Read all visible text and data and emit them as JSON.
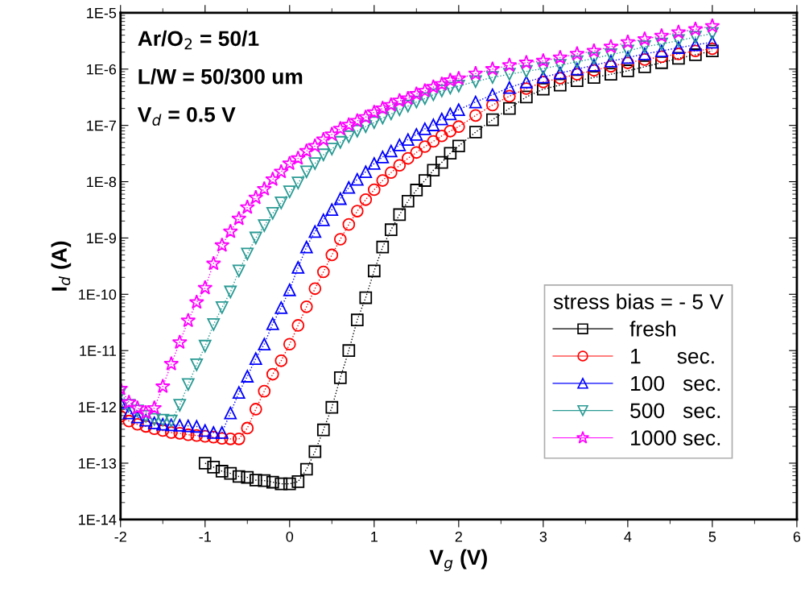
{
  "chart_data": {
    "type": "line",
    "xlabel": "V$_{g}$ (V)",
    "ylabel": "I$_{d}$ (A)",
    "legend_title": "stress bias = - 5 V",
    "annotations": [
      "Ar/O$_{2}$ = 50/1",
      "L/W = 50/300 um",
      "V$_{d}$ = 0.5 V"
    ],
    "log": "y",
    "legend": "bottom right",
    "line_style": "dotted",
    "xlim": [
      -2,
      6
    ],
    "xticks": [
      {
        "value": -2,
        "label": "-2"
      },
      {
        "value": -1,
        "label": "-1"
      },
      0,
      1,
      2,
      3,
      4,
      5,
      6
    ],
    "ylim": [
      1e-14,
      1e-05
    ],
    "yticks": [
      {
        "value": 1e-14,
        "label": "1E-14"
      },
      {
        "value": 1e-13,
        "label": "1E-13"
      },
      {
        "value": 1e-12,
        "label": "1E-12"
      },
      {
        "value": 1e-11,
        "label": "1E-11"
      },
      {
        "value": 1e-10,
        "label": "1E-10"
      },
      {
        "value": 1e-09,
        "label": "1E-9"
      },
      {
        "value": 1e-08,
        "label": "1E-8"
      },
      {
        "value": 1e-07,
        "label": "1E-7"
      },
      {
        "value": 1e-06,
        "label": "1E-6"
      },
      {
        "value": 1e-05,
        "label": "1E-5"
      }
    ],
    "series": [
      {
        "name": "fresh",
        "color": "#000000",
        "marker": "square",
        "x": [
          -1.0,
          -0.9,
          -0.8,
          -0.7,
          -0.6,
          -0.5,
          -0.4,
          -0.3,
          -0.2,
          -0.1,
          0.0,
          0.1,
          0.2,
          0.3,
          0.4,
          0.5,
          0.6,
          0.7,
          0.8,
          0.9,
          1.0,
          1.1,
          1.2,
          1.3,
          1.4,
          1.5,
          1.6,
          1.7,
          1.8,
          1.9,
          2.0,
          2.2,
          2.4,
          2.6,
          2.8,
          3.0,
          3.2,
          3.4,
          3.6,
          3.8,
          4.0,
          4.2,
          4.4,
          4.6,
          4.8,
          5.0
        ],
        "values": [
          1e-13,
          8.5e-14,
          7.2e-14,
          6.6e-14,
          5.8e-14,
          5.6e-14,
          5e-14,
          4.9e-14,
          4.6e-14,
          4.3e-14,
          4.3e-14,
          4.7e-14,
          7.8e-14,
          1.6e-13,
          3.9e-13,
          9.8e-13,
          3.3e-12,
          1e-11,
          3.5e-11,
          8.7e-11,
          2.6e-10,
          6.9e-10,
          1.4e-09,
          2.6e-09,
          4.5e-09,
          7.1e-09,
          1.05e-08,
          1.6e-08,
          2.2e-08,
          3.2e-08,
          4.3e-08,
          7.6e-08,
          1.26e-07,
          2e-07,
          3.2e-07,
          4.4e-07,
          5.2e-07,
          6.2e-07,
          7.1e-07,
          8.1e-07,
          9.3e-07,
          1.1e-06,
          1.3e-06,
          1.55e-06,
          1.8e-06,
          2.1e-06
        ]
      },
      {
        "name": "1      sec.",
        "color": "#ff0000",
        "marker": "circle",
        "x": [
          -2.0,
          -1.9,
          -1.8,
          -1.7,
          -1.6,
          -1.5,
          -1.4,
          -1.3,
          -1.2,
          -1.1,
          -1.0,
          -0.9,
          -0.8,
          -0.7,
          -0.6,
          -0.5,
          -0.4,
          -0.3,
          -0.2,
          -0.1,
          0.0,
          0.1,
          0.2,
          0.3,
          0.4,
          0.5,
          0.6,
          0.7,
          0.8,
          0.9,
          1.0,
          1.1,
          1.2,
          1.3,
          1.4,
          1.5,
          1.6,
          1.7,
          1.8,
          1.9,
          2.0,
          2.2,
          2.4,
          2.6,
          2.8,
          3.0,
          3.2,
          3.4,
          3.6,
          3.8,
          4.0,
          4.2,
          4.4,
          4.6,
          4.8,
          5.0
        ],
        "values": [
          6.8e-13,
          5.6e-13,
          4.9e-13,
          4.5e-13,
          4.1e-13,
          3.8e-13,
          3.5e-13,
          3.4e-13,
          3.2e-13,
          3.1e-13,
          3e-13,
          2.9e-13,
          2.75e-13,
          2.7e-13,
          2.7e-13,
          4.2e-13,
          9.1e-13,
          1.9e-12,
          3.8e-12,
          6.6e-12,
          1.3e-11,
          2.8e-11,
          6e-11,
          1.26e-10,
          2.5e-10,
          5e-10,
          9.5e-10,
          1.74e-09,
          3e-09,
          4.8e-09,
          7.2e-09,
          1.05e-08,
          1.45e-08,
          1.95e-08,
          2.6e-08,
          3.3e-08,
          4.2e-08,
          5.2e-08,
          6.5e-08,
          7.9e-08,
          9.5e-08,
          1.5e-07,
          2.3e-07,
          3.3e-07,
          4.5e-07,
          5.9e-07,
          6.9e-07,
          8.1e-07,
          9.5e-07,
          1.12e-06,
          1.29e-06,
          1.48e-06,
          1.66e-06,
          1.86e-06,
          2.1e-06,
          2.3e-06
        ]
      },
      {
        "name": "100   sec.",
        "color": "#0000ff",
        "marker": "triangle",
        "x": [
          -2.0,
          -1.9,
          -1.8,
          -1.7,
          -1.6,
          -1.5,
          -1.4,
          -1.3,
          -1.2,
          -1.1,
          -1.0,
          -0.9,
          -0.8,
          -0.7,
          -0.6,
          -0.5,
          -0.4,
          -0.3,
          -0.2,
          -0.1,
          0.0,
          0.1,
          0.2,
          0.3,
          0.4,
          0.5,
          0.6,
          0.7,
          0.8,
          0.9,
          1.0,
          1.1,
          1.2,
          1.3,
          1.4,
          1.5,
          1.6,
          1.7,
          1.8,
          1.9,
          2.0,
          2.2,
          2.4,
          2.6,
          2.8,
          3.0,
          3.2,
          3.4,
          3.6,
          3.8,
          4.0,
          4.2,
          4.4,
          4.6,
          4.8,
          5.0
        ],
        "values": [
          1.2e-12,
          7.8e-13,
          6.6e-13,
          5.8e-13,
          5.2e-13,
          4.9e-13,
          4.8e-13,
          4.7e-13,
          4.6e-13,
          4.5e-13,
          3.8e-13,
          3.5e-13,
          3.5e-13,
          7.8e-13,
          1.8e-12,
          3.5e-12,
          7.2e-12,
          1.3e-11,
          3e-11,
          5.8e-11,
          1.2e-10,
          3e-10,
          6.9e-10,
          1.3e-09,
          2.1e-09,
          3.2e-09,
          5e-09,
          7.9e-09,
          1.1e-08,
          1.5e-08,
          2.1e-08,
          2.75e-08,
          3.5e-08,
          4.5e-08,
          5.6e-08,
          6.9e-08,
          8.7e-08,
          1.02e-07,
          1.3e-07,
          1.6e-07,
          1.9e-07,
          2.6e-07,
          3.5e-07,
          4.7e-07,
          5.9e-07,
          7.2e-07,
          8.5e-07,
          1e-06,
          1.17e-06,
          1.38e-06,
          1.6e-06,
          1.86e-06,
          2.1e-06,
          2.4e-06,
          2.7e-06,
          3e-06
        ]
      },
      {
        "name": "500   sec.",
        "color": "#2a9a94",
        "marker": "triangle_down",
        "x": [
          -2.0,
          -1.9,
          -1.8,
          -1.7,
          -1.6,
          -1.5,
          -1.4,
          -1.3,
          -1.2,
          -1.1,
          -1.0,
          -0.9,
          -0.8,
          -0.7,
          -0.6,
          -0.5,
          -0.4,
          -0.3,
          -0.2,
          -0.1,
          0.0,
          0.1,
          0.2,
          0.3,
          0.4,
          0.5,
          0.6,
          0.7,
          0.8,
          0.9,
          1.0,
          1.1,
          1.2,
          1.3,
          1.4,
          1.5,
          1.6,
          1.7,
          1.8,
          1.9,
          2.0,
          2.2,
          2.4,
          2.6,
          2.8,
          3.0,
          3.2,
          3.4,
          3.6,
          3.8,
          4.0,
          4.2,
          4.4,
          4.6,
          4.8,
          5.0
        ],
        "values": [
          1.8e-12,
          1.07e-12,
          8.5e-13,
          6.8e-13,
          6e-13,
          5.8e-13,
          5.6e-13,
          1.07e-12,
          2.5e-12,
          5.6e-12,
          1.2e-11,
          2.9e-11,
          5.8e-11,
          1.1e-10,
          2.6e-10,
          5.2e-10,
          1e-09,
          1.66e-09,
          2.75e-09,
          4.2e-09,
          6.6e-09,
          9.5e-09,
          1.5e-08,
          2.1e-08,
          3e-08,
          3.8e-08,
          5e-08,
          6.3e-08,
          7.9e-08,
          9.5e-08,
          1.12e-07,
          1.35e-07,
          1.6e-07,
          1.9e-07,
          2.2e-07,
          2.6e-07,
          3e-07,
          3.5e-07,
          4.1e-07,
          4.6e-07,
          5e-07,
          6e-07,
          7.1e-07,
          8.1e-07,
          9.1e-07,
          1.02e-06,
          1.17e-06,
          1.35e-06,
          1.55e-06,
          1.8e-06,
          2.1e-06,
          2.5e-06,
          2.8e-06,
          3.2e-06,
          3.7e-06,
          4.3e-06
        ]
      },
      {
        "name": "1000 sec.",
        "color": "#ff00ff",
        "marker": "star",
        "x": [
          -2.0,
          -1.9,
          -1.8,
          -1.7,
          -1.6,
          -1.5,
          -1.4,
          -1.3,
          -1.2,
          -1.1,
          -1.0,
          -0.9,
          -0.8,
          -0.7,
          -0.6,
          -0.5,
          -0.4,
          -0.3,
          -0.2,
          -0.1,
          0.0,
          0.1,
          0.2,
          0.3,
          0.4,
          0.5,
          0.6,
          0.7,
          0.8,
          0.9,
          1.0,
          1.1,
          1.2,
          1.3,
          1.4,
          1.5,
          1.6,
          1.7,
          1.8,
          1.9,
          2.0,
          2.2,
          2.4,
          2.6,
          2.8,
          3.0,
          3.2,
          3.4,
          3.6,
          3.8,
          4.0,
          4.2,
          4.4,
          4.6,
          4.8,
          5.0
        ],
        "values": [
          2.1e-12,
          1.2e-12,
          9.5e-13,
          7.9e-13,
          9.5e-13,
          2.3e-12,
          5.8e-12,
          1.4e-11,
          3.4e-11,
          7.2e-11,
          1.3e-10,
          3.5e-10,
          7.4e-10,
          1.3e-09,
          2.2e-09,
          3.5e-09,
          5.2e-09,
          7.4e-09,
          1.1e-08,
          1.5e-08,
          2.1e-08,
          2.6e-08,
          3.5e-08,
          4.3e-08,
          5.6e-08,
          6.9e-08,
          8.7e-08,
          1.02e-07,
          1.2e-07,
          1.4e-07,
          1.7e-07,
          2e-07,
          2.3e-07,
          2.75e-07,
          3e-07,
          3.6e-07,
          4.1e-07,
          4.8e-07,
          5.4e-07,
          6.3e-07,
          6.8e-07,
          8.3e-07,
          1e-06,
          1.17e-06,
          1.3e-06,
          1.4e-06,
          1.6e-06,
          1.86e-06,
          2.1e-06,
          2.5e-06,
          3e-06,
          3.4e-06,
          3.9e-06,
          4.5e-06,
          5.1e-06,
          5.8e-06
        ]
      }
    ]
  }
}
